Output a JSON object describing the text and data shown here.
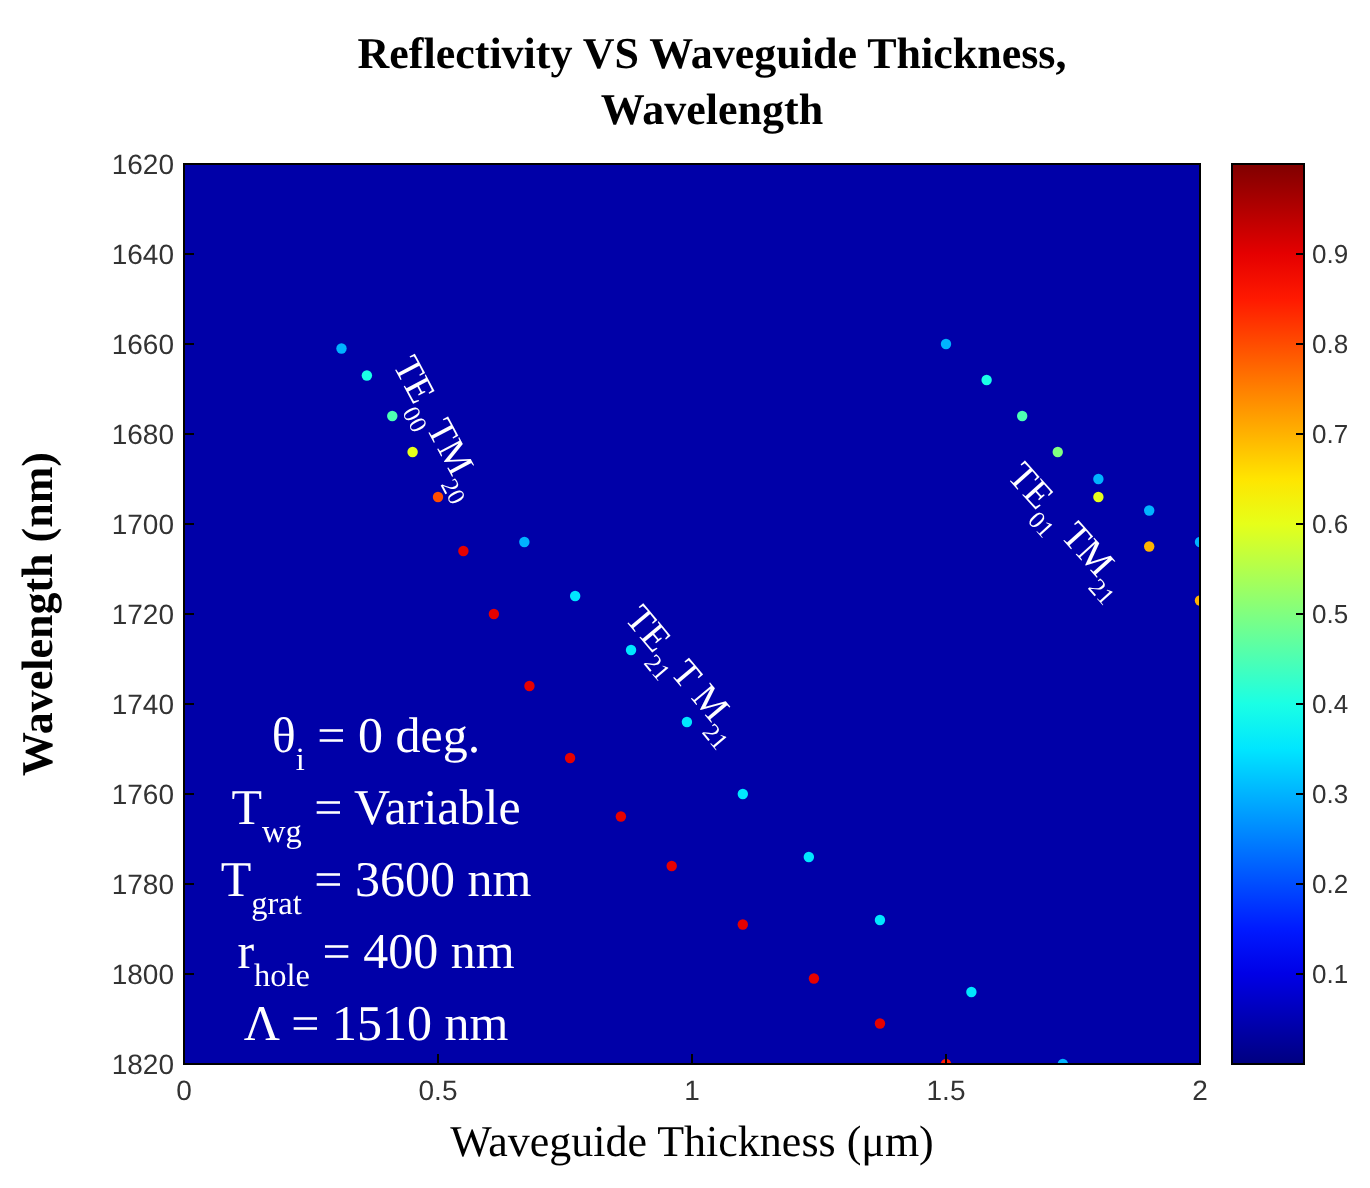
{
  "chart_data": {
    "type": "scatter",
    "title": "Reflectivity VS Waveguide Thickness, Wavelength",
    "xlabel": "Waveguide Thickness (μm)",
    "ylabel": "Wavelength (nm)",
    "xlim": [
      0,
      2
    ],
    "xticks": [
      0,
      0.5,
      1,
      1.5,
      2
    ],
    "ylim": [
      1820,
      1620
    ],
    "yticks": [
      1620,
      1640,
      1660,
      1680,
      1700,
      1720,
      1740,
      1760,
      1780,
      1800,
      1820
    ],
    "clim": [
      0,
      1
    ],
    "cticks": [
      0.1,
      0.2,
      0.3,
      0.4,
      0.5,
      0.6,
      0.7,
      0.8,
      0.9
    ],
    "grid": false,
    "marker": "circle",
    "series": [
      {
        "x": [
          0.31,
          0.36,
          0.41,
          0.45,
          0.5,
          0.55,
          0.61,
          0.68,
          0.76,
          0.86,
          0.96,
          1.1,
          1.24,
          1.37,
          1.5
        ],
        "values": [
          1661,
          1667,
          1676,
          1684,
          1694,
          1706,
          1720,
          1736,
          1752,
          1765,
          1776,
          1789,
          1801,
          1811,
          1820
        ],
        "colors": [
          "#00b3ff",
          "#1affe6",
          "#4dffb3",
          "#e6ff1a",
          "#ff4d00",
          "#e60000",
          "#e60000",
          "#e60000",
          "#e60000",
          "#e60000",
          "#e60000",
          "#e60000",
          "#e60000",
          "#e60000",
          "#ff1a00"
        ]
      },
      {
        "x": [
          0.67,
          0.77,
          0.88,
          0.99,
          1.1,
          1.23,
          1.37,
          1.55,
          1.73
        ],
        "values": [
          1704,
          1716,
          1728,
          1744,
          1760,
          1774,
          1788,
          1804,
          1820
        ],
        "colors": [
          "#00b3ff",
          "#00e6ff",
          "#00e6ff",
          "#00e6ff",
          "#00e6ff",
          "#00e6ff",
          "#00e6ff",
          "#00e6ff",
          "#00b3ff"
        ]
      },
      {
        "x": [
          1.5,
          1.58,
          1.65,
          1.72,
          1.8,
          1.9,
          2.0
        ],
        "values": [
          1660,
          1668,
          1676,
          1684,
          1694,
          1705,
          1717
        ],
        "colors": [
          "#00b3ff",
          "#1affe6",
          "#4dffb3",
          "#80ff80",
          "#e6ff1a",
          "#ffb300",
          "#ffb300"
        ]
      },
      {
        "x": [
          1.8,
          1.9,
          2.0
        ],
        "values": [
          1690,
          1697,
          1704
        ],
        "color": "#00b3ff"
      }
    ],
    "annotations": [
      "TE$_{00}$TM$_{20}$",
      "TE$_{21}$T M$_{21}$",
      "TE$_{01}$ TM$_{21}$",
      "θ$_{i}$ = 0 deg.",
      "T$_{wg}$ = Variable",
      "T$_{grat}$ = 3600 nm",
      "r$_{hole}$ = 400 nm",
      "Λ = 1510 nm"
    ]
  }
}
